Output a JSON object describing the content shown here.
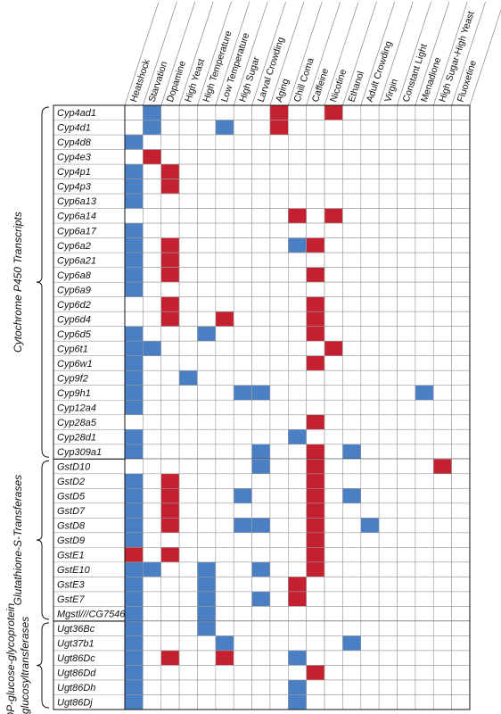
{
  "chart_data": {
    "type": "heatmap",
    "columns": [
      "Heatshock",
      "Starvation",
      "Dopamine",
      "High Yeast",
      "High Temperature",
      "Low Temperature",
      "High Sugar",
      "Larval Crowding",
      "Aging",
      "Chill Coma",
      "Caffeine",
      "Nicotine",
      "Ethanol",
      "Adult Crowding",
      "Virgin",
      "Constant Light",
      "Menadione",
      "High Sugar-High Yeast",
      "Fluoxetine"
    ],
    "colors": {
      "-1": "#4a7fc4",
      "0": "#ffffff",
      "1": "#c4202f"
    },
    "groups": [
      {
        "label": [
          "Cytochrome P450 Transcripts"
        ],
        "rows": [
          "Cyp4ad1",
          "Cyp4d1",
          "Cyp4d8",
          "Cyp4e3",
          "Cyp4p1",
          "Cyp4p3",
          "Cyp6a13",
          "Cyp6a14",
          "Cyp6a17",
          "Cyp6a2",
          "Cyp6a21",
          "Cyp6a8",
          "Cyp6a9",
          "Cyp6d2",
          "Cyp6d4",
          "Cyp6d5",
          "Cyp6t1",
          "Cyp6w1",
          "Cyp9f2",
          "Cyp9h1",
          "Cyp12a4",
          "Cyp28a5",
          "Cyp28d1",
          "Cyp309a1"
        ],
        "values": [
          [
            0,
            -1,
            0,
            0,
            0,
            0,
            0,
            0,
            1,
            0,
            0,
            1,
            0,
            0,
            0,
            0,
            0,
            0,
            0
          ],
          [
            0,
            -1,
            0,
            0,
            0,
            -1,
            0,
            0,
            1,
            0,
            0,
            0,
            0,
            0,
            0,
            0,
            0,
            0,
            0
          ],
          [
            -1,
            0,
            0,
            0,
            0,
            0,
            0,
            0,
            0,
            0,
            0,
            0,
            0,
            0,
            0,
            0,
            0,
            0,
            0
          ],
          [
            0,
            1,
            0,
            0,
            0,
            0,
            0,
            0,
            0,
            0,
            0,
            0,
            0,
            0,
            0,
            0,
            0,
            0,
            0
          ],
          [
            -1,
            0,
            1,
            0,
            0,
            0,
            0,
            0,
            0,
            0,
            0,
            0,
            0,
            0,
            0,
            0,
            0,
            0,
            0
          ],
          [
            -1,
            0,
            1,
            0,
            0,
            0,
            0,
            0,
            0,
            0,
            0,
            0,
            0,
            0,
            0,
            0,
            0,
            0,
            0
          ],
          [
            -1,
            0,
            0,
            0,
            0,
            0,
            0,
            0,
            0,
            0,
            0,
            0,
            0,
            0,
            0,
            0,
            0,
            0,
            0
          ],
          [
            0,
            0,
            0,
            0,
            0,
            0,
            0,
            0,
            0,
            1,
            0,
            1,
            0,
            0,
            0,
            0,
            0,
            0,
            0
          ],
          [
            -1,
            0,
            0,
            0,
            0,
            0,
            0,
            0,
            0,
            0,
            0,
            0,
            0,
            0,
            0,
            0,
            0,
            0,
            0
          ],
          [
            -1,
            0,
            1,
            0,
            0,
            0,
            0,
            0,
            0,
            -1,
            1,
            0,
            0,
            0,
            0,
            0,
            0,
            0,
            0
          ],
          [
            -1,
            0,
            1,
            0,
            0,
            0,
            0,
            0,
            0,
            0,
            0,
            0,
            0,
            0,
            0,
            0,
            0,
            0,
            0
          ],
          [
            -1,
            0,
            1,
            0,
            0,
            0,
            0,
            0,
            0,
            0,
            1,
            0,
            0,
            0,
            0,
            0,
            0,
            0,
            0
          ],
          [
            -1,
            0,
            0,
            0,
            0,
            0,
            0,
            0,
            0,
            0,
            0,
            0,
            0,
            0,
            0,
            0,
            0,
            0,
            0
          ],
          [
            0,
            0,
            1,
            0,
            0,
            0,
            0,
            0,
            0,
            0,
            1,
            0,
            0,
            0,
            0,
            0,
            0,
            0,
            0
          ],
          [
            0,
            0,
            1,
            0,
            0,
            1,
            0,
            0,
            0,
            0,
            1,
            0,
            0,
            0,
            0,
            0,
            0,
            0,
            0
          ],
          [
            -1,
            0,
            0,
            0,
            -1,
            0,
            0,
            0,
            0,
            0,
            1,
            0,
            0,
            0,
            0,
            0,
            0,
            0,
            0
          ],
          [
            -1,
            -1,
            0,
            0,
            0,
            0,
            0,
            0,
            0,
            0,
            0,
            1,
            0,
            0,
            0,
            0,
            0,
            0,
            0
          ],
          [
            -1,
            0,
            0,
            0,
            0,
            0,
            0,
            0,
            0,
            0,
            1,
            0,
            0,
            0,
            0,
            0,
            0,
            0,
            0
          ],
          [
            -1,
            0,
            0,
            -1,
            0,
            0,
            0,
            0,
            0,
            0,
            0,
            0,
            0,
            0,
            0,
            0,
            0,
            0,
            0
          ],
          [
            -1,
            0,
            0,
            0,
            0,
            0,
            -1,
            -1,
            0,
            0,
            0,
            0,
            0,
            0,
            0,
            0,
            -1,
            0,
            0
          ],
          [
            -1,
            0,
            0,
            0,
            0,
            0,
            0,
            0,
            0,
            0,
            0,
            0,
            0,
            0,
            0,
            0,
            0,
            0,
            0
          ],
          [
            0,
            0,
            0,
            0,
            0,
            0,
            0,
            0,
            0,
            0,
            1,
            0,
            0,
            0,
            0,
            0,
            0,
            0,
            0
          ],
          [
            -1,
            0,
            0,
            0,
            0,
            0,
            0,
            0,
            0,
            -1,
            0,
            0,
            0,
            0,
            0,
            0,
            0,
            0,
            0
          ],
          [
            -1,
            0,
            0,
            0,
            0,
            0,
            0,
            -1,
            0,
            0,
            1,
            0,
            -1,
            0,
            0,
            0,
            0,
            0,
            0
          ]
        ]
      },
      {
        "label": [
          "Glutathione-S-Transferases"
        ],
        "rows": [
          "GstD10",
          "GstD2",
          "GstD5",
          "GstD7",
          "GstD8",
          "GstD9",
          "GstE1",
          "GstE10",
          "GstE3",
          "GstE7",
          "Mgstl///CG7546"
        ],
        "values": [
          [
            0,
            0,
            0,
            0,
            0,
            0,
            0,
            -1,
            0,
            0,
            1,
            0,
            0,
            0,
            0,
            0,
            0,
            1,
            0
          ],
          [
            -1,
            0,
            1,
            0,
            0,
            0,
            0,
            0,
            0,
            0,
            1,
            0,
            0,
            0,
            0,
            0,
            0,
            0,
            0
          ],
          [
            -1,
            0,
            1,
            0,
            0,
            0,
            -1,
            0,
            0,
            0,
            1,
            0,
            -1,
            0,
            0,
            0,
            0,
            0,
            0
          ],
          [
            -1,
            0,
            1,
            0,
            0,
            0,
            0,
            0,
            0,
            0,
            1,
            0,
            0,
            0,
            0,
            0,
            0,
            0,
            0
          ],
          [
            -1,
            0,
            1,
            0,
            0,
            0,
            -1,
            -1,
            0,
            0,
            1,
            0,
            0,
            -1,
            0,
            0,
            0,
            0,
            0
          ],
          [
            -1,
            0,
            0,
            0,
            0,
            0,
            0,
            0,
            0,
            0,
            1,
            0,
            0,
            0,
            0,
            0,
            0,
            0,
            0
          ],
          [
            1,
            0,
            1,
            0,
            0,
            0,
            0,
            0,
            0,
            0,
            1,
            0,
            0,
            0,
            0,
            0,
            0,
            0,
            0
          ],
          [
            -1,
            -1,
            0,
            0,
            -1,
            0,
            0,
            -1,
            0,
            0,
            1,
            0,
            0,
            0,
            0,
            0,
            0,
            0,
            0
          ],
          [
            -1,
            0,
            0,
            0,
            -1,
            0,
            0,
            0,
            0,
            1,
            0,
            0,
            0,
            0,
            0,
            0,
            0,
            0,
            0
          ],
          [
            -1,
            0,
            0,
            0,
            -1,
            0,
            0,
            -1,
            0,
            1,
            0,
            0,
            0,
            0,
            0,
            0,
            0,
            0,
            0
          ],
          [
            -1,
            0,
            0,
            0,
            -1,
            0,
            0,
            0,
            0,
            0,
            0,
            0,
            0,
            0,
            0,
            0,
            0,
            0,
            0
          ]
        ]
      },
      {
        "label": [
          "UDP-glucose-glycoprotein",
          "glucosyltransferases"
        ],
        "rows": [
          "Ugt36Bc",
          "Ugt37b1",
          "Ugt86Dc",
          "Ugt86Dd",
          "Ugt86Dh",
          "Ugt86Dj"
        ],
        "values": [
          [
            -1,
            0,
            0,
            0,
            -1,
            0,
            0,
            0,
            0,
            0,
            0,
            0,
            0,
            0,
            0,
            0,
            0,
            0,
            0
          ],
          [
            -1,
            0,
            0,
            0,
            0,
            -1,
            0,
            0,
            0,
            0,
            0,
            0,
            -1,
            0,
            0,
            0,
            0,
            0,
            0
          ],
          [
            -1,
            0,
            1,
            0,
            0,
            1,
            0,
            0,
            0,
            -1,
            0,
            0,
            0,
            0,
            0,
            0,
            0,
            0,
            0
          ],
          [
            -1,
            0,
            0,
            0,
            0,
            0,
            0,
            0,
            0,
            0,
            1,
            0,
            0,
            0,
            0,
            0,
            0,
            0,
            0
          ],
          [
            -1,
            0,
            0,
            0,
            0,
            0,
            0,
            0,
            0,
            -1,
            0,
            0,
            0,
            0,
            0,
            0,
            0,
            0,
            0
          ],
          [
            -1,
            0,
            0,
            0,
            0,
            0,
            0,
            0,
            0,
            -1,
            0,
            0,
            0,
            0,
            0,
            0,
            0,
            0,
            0
          ]
        ]
      }
    ]
  }
}
